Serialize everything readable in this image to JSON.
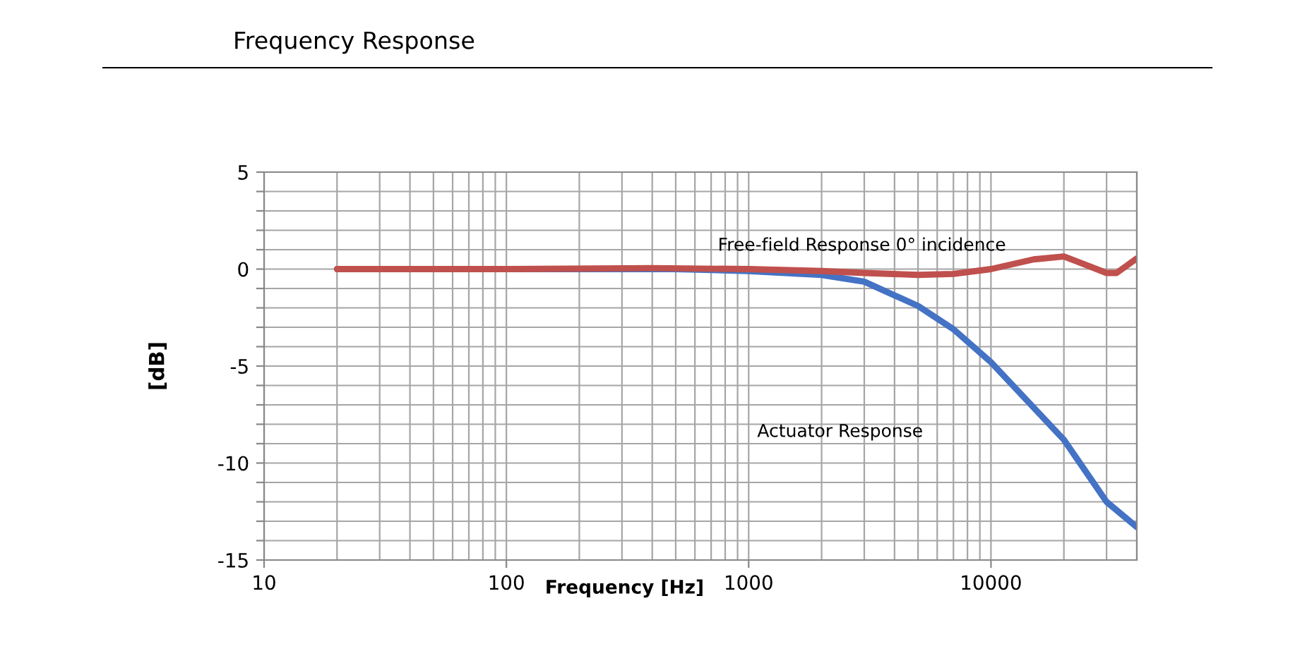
{
  "chart_data": {
    "type": "line",
    "title": "Frequency Response",
    "xlabel": "Frequency [Hz]",
    "ylabel": "[dB]",
    "log": "x",
    "xlim": [
      10,
      40000
    ],
    "xticks": [
      10,
      100,
      1000,
      10000
    ],
    "ylim": [
      -15,
      5
    ],
    "yticks": [
      -15,
      {
        "value": -14,
        "label": null
      },
      {
        "value": -13,
        "label": null
      },
      {
        "value": -12,
        "label": null
      },
      {
        "value": -11,
        "label": null
      },
      -10,
      {
        "value": -9,
        "label": null
      },
      {
        "value": -8,
        "label": null
      },
      {
        "value": -7,
        "label": null
      },
      {
        "value": -6,
        "label": null
      },
      -5,
      {
        "value": -4,
        "label": null
      },
      {
        "value": -3,
        "label": null
      },
      {
        "value": -2,
        "label": null
      },
      {
        "value": -1,
        "label": null
      },
      0,
      {
        "value": 1,
        "label": null
      },
      {
        "value": 2,
        "label": null
      },
      {
        "value": 3,
        "label": null
      },
      {
        "value": 4,
        "label": null
      },
      5
    ],
    "grid": true,
    "line_style": "solid",
    "series": [
      {
        "color": "#4472c4",
        "x": [
          20,
          100,
          500,
          1000,
          2000,
          3000,
          5000,
          7000,
          10000,
          20000,
          30000,
          40000
        ],
        "values": [
          0,
          0,
          0,
          -0.1,
          -0.3,
          -0.65,
          -1.9,
          -3.1,
          -4.8,
          -8.8,
          -12,
          -13.3
        ]
      },
      {
        "color": "#c0504d",
        "x": [
          20,
          100,
          400,
          1000,
          2000,
          3000,
          5000,
          7000,
          10000,
          15000,
          20000,
          30000,
          33000,
          40000
        ],
        "values": [
          0,
          0,
          0.05,
          0,
          -0.1,
          -0.2,
          -0.3,
          -0.25,
          0,
          0.5,
          0.65,
          -0.2,
          -0.2,
          0.55
        ]
      }
    ],
    "annotations": [
      "Free-field Response 0° incidence",
      "Actuator Response"
    ]
  }
}
